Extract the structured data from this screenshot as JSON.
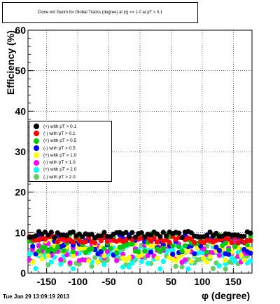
{
  "title": "Clone wrt Geom for Global Tracks (degree) at |η| <= 1.0 at pT > 0.1",
  "footer": "Tue Jan 29 13:09:19 2013",
  "chart_data": {
    "type": "scatter",
    "xlabel": "φ (degree)",
    "ylabel": "Efficiency (%)",
    "xlim": [
      -180,
      180
    ],
    "ylim": [
      0,
      60
    ],
    "x_ticks": [
      -150,
      -100,
      -50,
      0,
      50,
      100,
      150
    ],
    "y_ticks": [
      0,
      10,
      20,
      30,
      40,
      50,
      60
    ],
    "grid": true,
    "legend_position": "left-center",
    "series": [
      {
        "name": "(+) with pT > 0.1",
        "color": "#000000",
        "approx_level": 9.5,
        "spread": 0.8
      },
      {
        "name": "(-) with pT > 0.1",
        "color": "#ff0000",
        "approx_level": 8.3,
        "spread": 0.8
      },
      {
        "name": "(+) with pT > 0.5",
        "color": "#00cc00",
        "approx_level": 7.5,
        "spread": 2.5
      },
      {
        "name": "(-) with pT > 0.5",
        "color": "#0000ff",
        "approx_level": 7.0,
        "spread": 2.5
      },
      {
        "name": "(+) with pT > 1.0",
        "color": "#ffff00",
        "approx_level": 5.5,
        "spread": 3.0
      },
      {
        "name": "(-) with pT > 1.0",
        "color": "#ff00ff",
        "approx_level": 5.5,
        "spread": 3.0
      },
      {
        "name": "(+) with pT > 2.0",
        "color": "#00ffff",
        "approx_level": 4.0,
        "spread": 3.0
      },
      {
        "name": "(-) with pT > 2.0",
        "color": "#66cc66",
        "approx_level": 4.0,
        "spread": 3.0
      }
    ]
  }
}
